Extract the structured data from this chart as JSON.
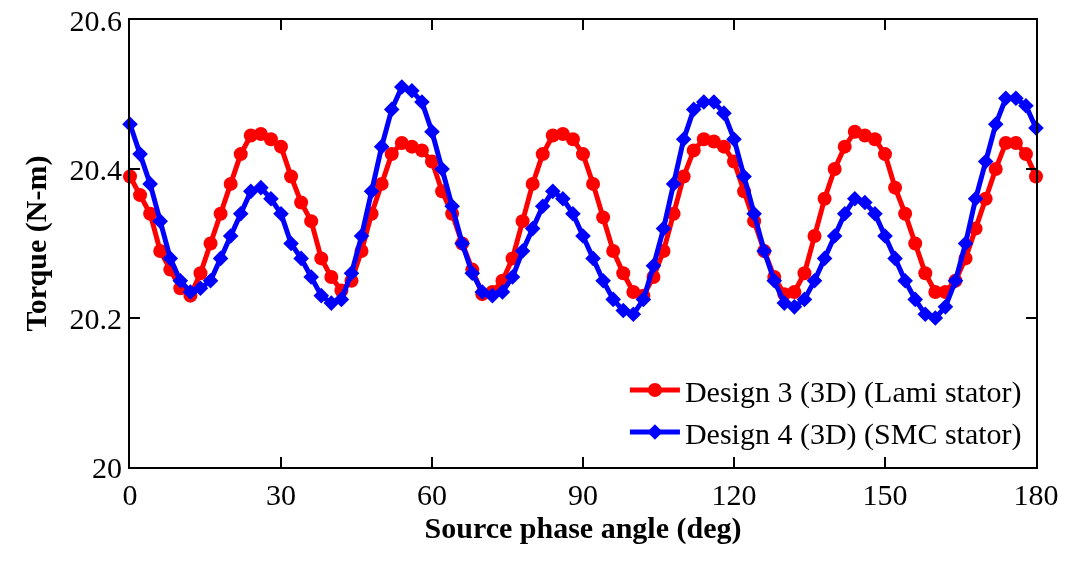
{
  "chart_data": {
    "type": "line",
    "xlabel": "Source phase angle (deg)",
    "ylabel": "Torque (N-m)",
    "x": [
      0,
      2,
      4,
      6,
      8,
      10,
      12,
      14,
      16,
      18,
      20,
      22,
      24,
      26,
      28,
      30,
      32,
      34,
      36,
      38,
      40,
      42,
      44,
      46,
      48,
      50,
      52,
      54,
      56,
      58,
      60,
      62,
      64,
      66,
      68,
      70,
      72,
      74,
      76,
      78,
      80,
      82,
      84,
      86,
      88,
      90,
      92,
      94,
      96,
      98,
      100,
      102,
      104,
      106,
      108,
      110,
      112,
      114,
      116,
      118,
      120,
      122,
      124,
      126,
      128,
      130,
      132,
      134,
      136,
      138,
      140,
      142,
      144,
      146,
      148,
      150,
      152,
      154,
      156,
      158,
      160,
      162,
      164,
      166,
      168,
      170,
      172,
      174,
      176,
      178,
      180
    ],
    "xlim": [
      0,
      180
    ],
    "xticks": [
      0,
      30,
      60,
      90,
      120,
      150,
      180
    ],
    "ylim": [
      20,
      20.6
    ],
    "yticks": [
      20,
      20.2,
      20.4,
      20.6
    ],
    "grid": false,
    "legend": "bottom right",
    "line_style": "solid",
    "series": [
      {
        "name": "Design 3 (3D) (Lami stator)",
        "color": "#ff0000",
        "marker": "circle",
        "values": [
          20.39,
          20.365,
          20.34,
          20.29,
          20.265,
          20.24,
          20.23,
          20.26,
          20.3,
          20.34,
          20.38,
          20.42,
          20.445,
          20.447,
          20.44,
          20.43,
          20.39,
          20.355,
          20.33,
          20.28,
          20.255,
          20.237,
          20.25,
          20.29,
          20.34,
          20.38,
          20.42,
          20.435,
          20.43,
          20.425,
          20.41,
          20.37,
          20.34,
          20.3,
          20.265,
          20.232,
          20.235,
          20.25,
          20.28,
          20.33,
          20.38,
          20.42,
          20.445,
          20.447,
          20.44,
          20.42,
          20.38,
          20.335,
          20.29,
          20.26,
          20.235,
          20.23,
          20.255,
          20.29,
          20.34,
          20.39,
          20.425,
          20.44,
          20.437,
          20.43,
          20.41,
          20.37,
          20.33,
          20.29,
          20.255,
          20.232,
          20.235,
          20.26,
          20.31,
          20.36,
          20.4,
          20.43,
          20.45,
          20.445,
          20.44,
          20.42,
          20.375,
          20.34,
          20.3,
          20.26,
          20.235,
          20.235,
          20.25,
          20.28,
          20.32,
          20.36,
          20.4,
          20.435,
          20.435,
          20.42,
          20.39
        ]
      },
      {
        "name": "Design 4 (3D) (SMC stator)",
        "color": "#0000ff",
        "marker": "diamond",
        "values": [
          20.46,
          20.42,
          20.38,
          20.33,
          20.28,
          20.25,
          20.235,
          20.24,
          20.25,
          20.28,
          20.31,
          20.34,
          20.37,
          20.375,
          20.36,
          20.34,
          20.3,
          20.28,
          20.255,
          20.23,
          20.22,
          20.225,
          20.26,
          20.31,
          20.37,
          20.43,
          20.48,
          20.51,
          20.505,
          20.49,
          20.45,
          20.4,
          20.35,
          20.3,
          20.26,
          20.235,
          20.23,
          20.235,
          20.255,
          20.29,
          20.32,
          20.35,
          20.37,
          20.36,
          20.34,
          20.31,
          20.28,
          20.25,
          20.225,
          20.21,
          20.205,
          20.225,
          20.27,
          20.32,
          20.38,
          20.44,
          20.48,
          20.49,
          20.49,
          20.475,
          20.44,
          20.39,
          20.34,
          20.29,
          20.25,
          20.22,
          20.215,
          20.225,
          20.25,
          20.28,
          20.31,
          20.34,
          20.36,
          20.355,
          20.34,
          20.31,
          20.28,
          20.25,
          20.225,
          20.205,
          20.2,
          20.215,
          20.25,
          20.3,
          20.36,
          20.41,
          20.46,
          20.495,
          20.495,
          20.485,
          20.455
        ]
      }
    ]
  }
}
